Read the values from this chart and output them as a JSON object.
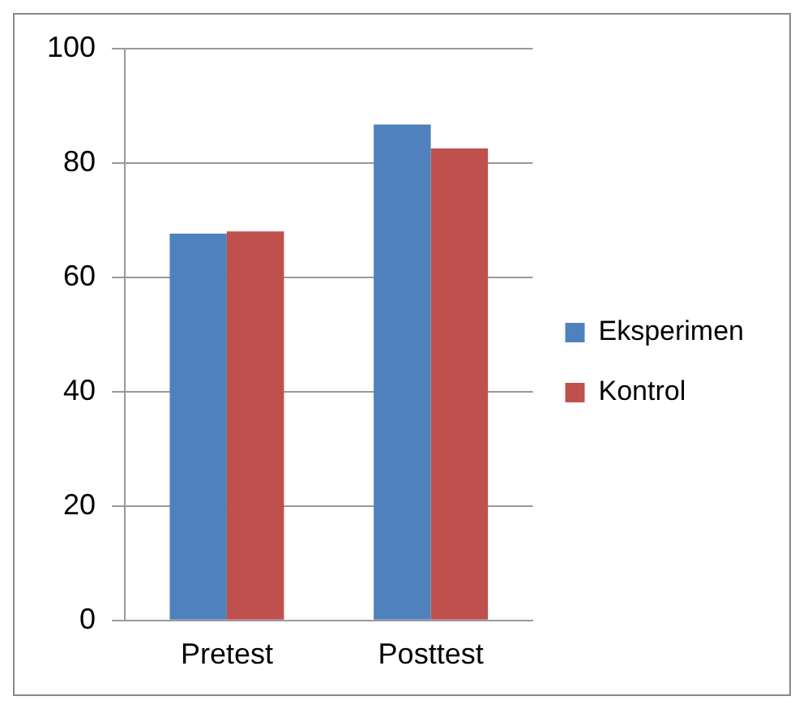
{
  "chart_data": {
    "type": "bar",
    "categories": [
      "Pretest",
      "Posttest"
    ],
    "series": [
      {
        "name": "Eksperimen",
        "color": "#4f81bd",
        "values": [
          67.6,
          86.7
        ]
      },
      {
        "name": "Kontrol",
        "color": "#c0504d",
        "values": [
          68.0,
          82.5
        ]
      }
    ],
    "ylim": [
      0,
      100
    ],
    "yticks": [
      0,
      20,
      40,
      60,
      80,
      100
    ],
    "grid": "y",
    "legend": "right"
  }
}
